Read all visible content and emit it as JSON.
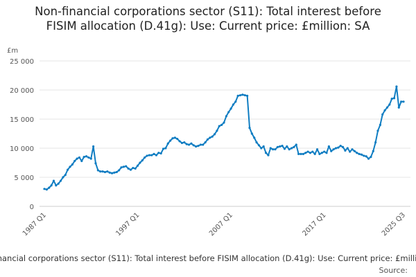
{
  "chart_data": {
    "type": "line",
    "title": "Non-financial corporations sector (S11): Total interest before FISIM allocation (D.41g): Use: Current price: £million: SA",
    "y_label": "£m",
    "source": "Source:",
    "categories": [
      "1987 Q1",
      null,
      null,
      null,
      null,
      null,
      null,
      null,
      null,
      null,
      null,
      null,
      null,
      null,
      null,
      null,
      null,
      null,
      null,
      null,
      null,
      null,
      null,
      null,
      null,
      null,
      null,
      null,
      null,
      null,
      null,
      null,
      null,
      null,
      null,
      null,
      null,
      null,
      null,
      null,
      "1997 Q1",
      null,
      null,
      null,
      null,
      null,
      null,
      null,
      null,
      null,
      null,
      null,
      null,
      null,
      null,
      null,
      null,
      null,
      null,
      null,
      null,
      null,
      null,
      null,
      null,
      null,
      null,
      null,
      null,
      null,
      null,
      null,
      null,
      null,
      null,
      null,
      null,
      null,
      null,
      null,
      "2007 Q1",
      null,
      null,
      null,
      null,
      null,
      null,
      null,
      null,
      null,
      null,
      null,
      null,
      null,
      null,
      null,
      null,
      null,
      null,
      null,
      null,
      null,
      null,
      null,
      null,
      null,
      null,
      null,
      null,
      null,
      null,
      null,
      null,
      null,
      null,
      null,
      null,
      null,
      null,
      null,
      "2017 Q1",
      null,
      null,
      null,
      null,
      null,
      null,
      null,
      null,
      null,
      null,
      null,
      null,
      null,
      null,
      null,
      null,
      null,
      null,
      null,
      null,
      null,
      null,
      null,
      null,
      null,
      null,
      null,
      null,
      null,
      null,
      null,
      null,
      null,
      "2025 Q3"
    ],
    "series": [
      {
        "name": "Non-financial corporations sector (S11): Total interest before FISIM allocation (D.41g): Use: Current price: £million: SA",
        "color": "#0f7dc2",
        "values": [
          3000,
          2900,
          3200,
          3600,
          4400,
          3600,
          3900,
          4400,
          5000,
          5400,
          6300,
          6800,
          7200,
          7800,
          8200,
          8400,
          7800,
          8500,
          8600,
          8400,
          8200,
          10300,
          7400,
          6200,
          6000,
          6000,
          5900,
          6000,
          5800,
          5700,
          5800,
          5900,
          6200,
          6700,
          6800,
          6900,
          6500,
          6300,
          6600,
          6500,
          7000,
          7500,
          7900,
          8400,
          8700,
          8800,
          8800,
          9000,
          8800,
          9200,
          9100,
          9900,
          10000,
          10800,
          11300,
          11700,
          11800,
          11600,
          11200,
          10900,
          11000,
          10700,
          10600,
          10800,
          10500,
          10300,
          10400,
          10600,
          10600,
          11000,
          11500,
          11800,
          12000,
          12400,
          13000,
          13800,
          14000,
          14400,
          15500,
          16200,
          16800,
          17500,
          18000,
          19000,
          19100,
          19200,
          19100,
          19000,
          13500,
          12500,
          11800,
          11000,
          10500,
          10000,
          10300,
          9200,
          8800,
          10000,
          9800,
          9800,
          10200,
          10300,
          10400,
          9900,
          10300,
          9800,
          10000,
          10200,
          10600,
          9000,
          9000,
          9000,
          9200,
          9400,
          9200,
          9400,
          9000,
          9800,
          9000,
          9200,
          9400,
          9200,
          10300,
          9500,
          9800,
          10000,
          10100,
          10400,
          10200,
          9600,
          10000,
          9400,
          9800,
          9500,
          9200,
          9000,
          8900,
          8700,
          8600,
          8200,
          8500,
          9500,
          11000,
          13000,
          14000,
          15800,
          16500,
          17000,
          17500,
          18500,
          18600,
          20600,
          17000,
          18000,
          18000
        ]
      }
    ],
    "ylim": [
      0,
      25000
    ],
    "yticks": [
      0,
      {
        "value": 5000,
        "label": "5 000"
      },
      {
        "value": 10000,
        "label": "10 000"
      },
      {
        "value": 15000,
        "label": "15 000"
      },
      {
        "value": 20000,
        "label": "20 000"
      },
      {
        "value": 25000,
        "label": "25 000"
      }
    ],
    "grid": true
  }
}
